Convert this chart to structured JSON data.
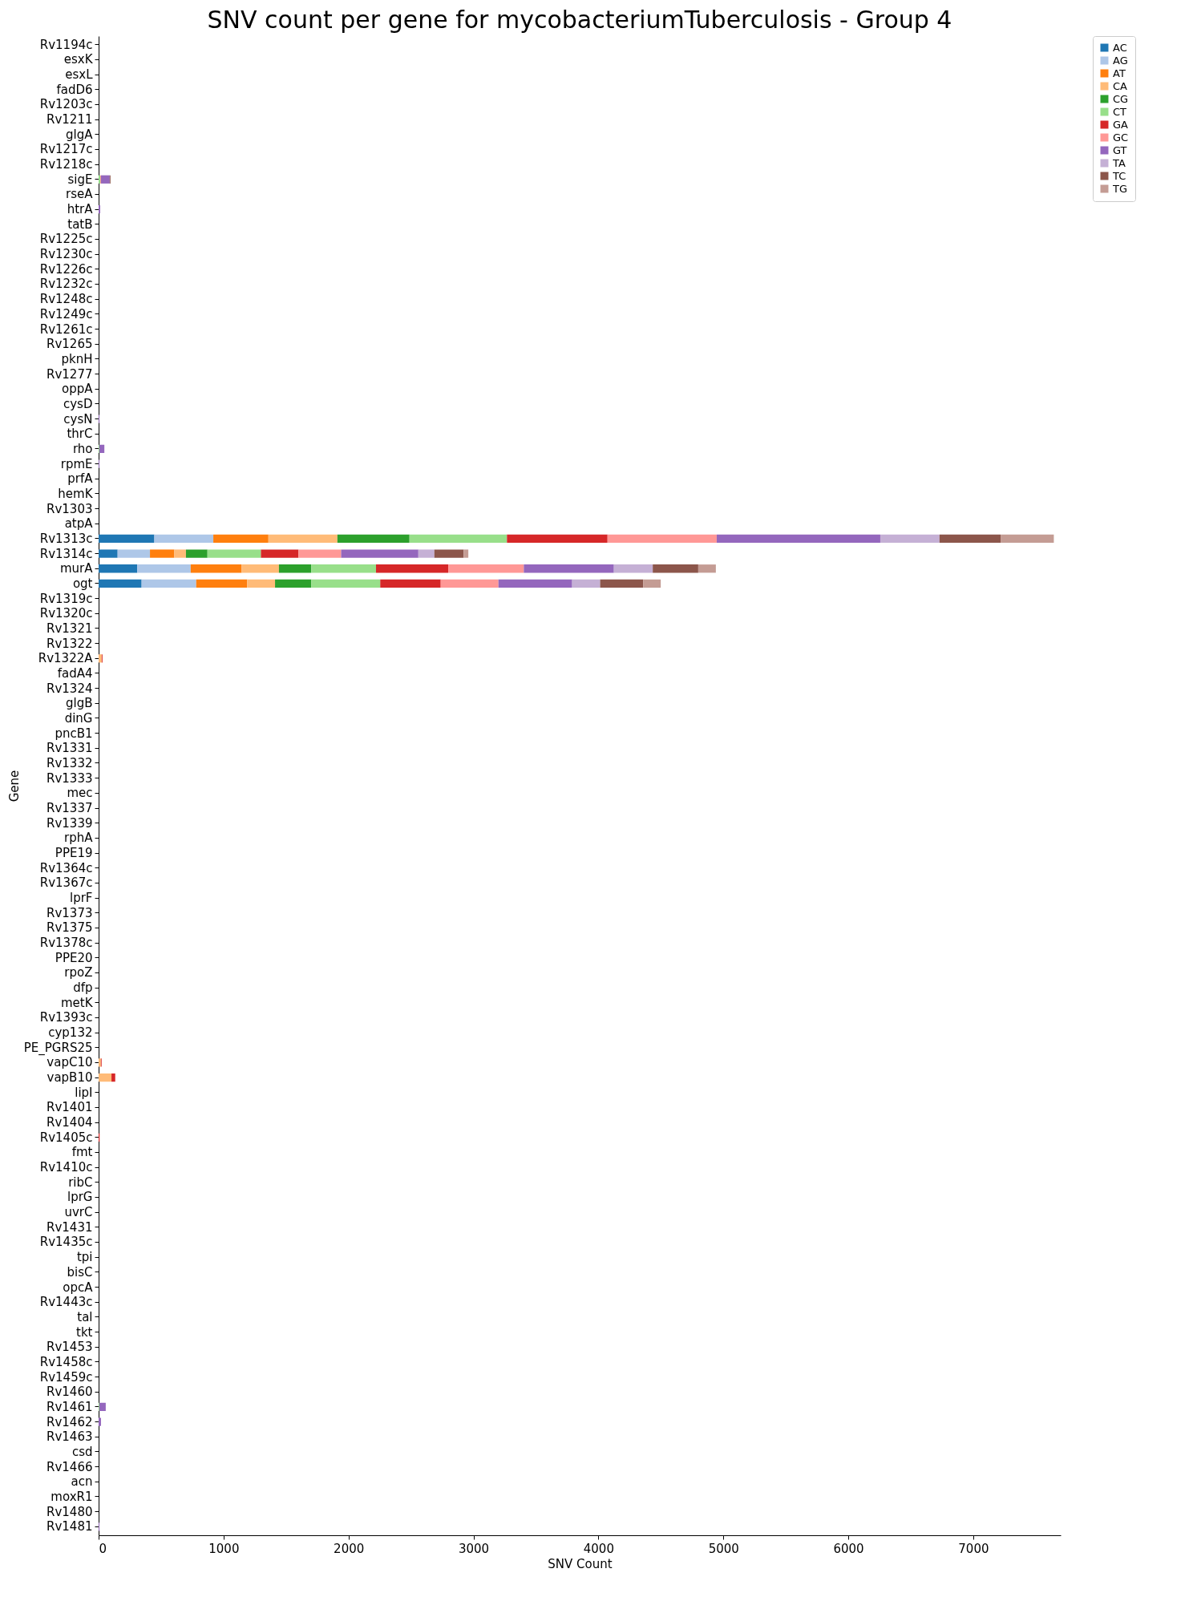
{
  "chart_data": {
    "type": "bar",
    "orientation": "horizontal",
    "stacked": true,
    "title": "SNV count per gene for mycobacteriumTuberculosis - Group 4",
    "xlabel": "SNV Count",
    "ylabel": "Gene",
    "grid": false,
    "legend": "top right",
    "xlim": [
      0,
      7700
    ],
    "xticks": [
      0,
      1000,
      2000,
      3000,
      4000,
      5000,
      6000,
      7000
    ],
    "categories": [
      "Rv1194c",
      "esxK",
      "esxL",
      "fadD6",
      "Rv1203c",
      "Rv1211",
      "glgA",
      "Rv1217c",
      "Rv1218c",
      "sigE",
      "rseA",
      "htrA",
      "tatB",
      "Rv1225c",
      "Rv1230c",
      "Rv1226c",
      "Rv1232c",
      "Rv1248c",
      "Rv1249c",
      "Rv1261c",
      "Rv1265",
      "pknH",
      "Rv1277",
      "oppA",
      "cysD",
      "cysN",
      "thrC",
      "rho",
      "rpmE",
      "prfA",
      "hemK",
      "Rv1303",
      "atpA",
      "Rv1313c",
      "Rv1314c",
      "murA",
      "ogt",
      "Rv1319c",
      "Rv1320c",
      "Rv1321",
      "Rv1322",
      "Rv1322A",
      "fadA4",
      "Rv1324",
      "glgB",
      "dinG",
      "pncB1",
      "Rv1331",
      "Rv1332",
      "Rv1333",
      "mec",
      "Rv1337",
      "Rv1339",
      "rphA",
      "PPE19",
      "Rv1364c",
      "Rv1367c",
      "lprF",
      "Rv1373",
      "Rv1375",
      "Rv1378c",
      "PPE20",
      "rpoZ",
      "dfp",
      "metK",
      "Rv1393c",
      "cyp132",
      "PE_PGRS25",
      "vapC10",
      "vapB10",
      "lipI",
      "Rv1401",
      "Rv1404",
      "Rv1405c",
      "fmt",
      "Rv1410c",
      "ribC",
      "lprG",
      "uvrC",
      "Rv1431",
      "Rv1435c",
      "tpi",
      "bisC",
      "opcA",
      "Rv1443c",
      "tal",
      "tkt",
      "Rv1453",
      "Rv1458c",
      "Rv1459c",
      "Rv1460",
      "Rv1461",
      "Rv1462",
      "Rv1463",
      "csd",
      "Rv1466",
      "acn",
      "moxR1",
      "Rv1480",
      "Rv1481"
    ],
    "series": [
      {
        "name": "AC",
        "color": "#1f77b4",
        "values": [
          0,
          0,
          0,
          0,
          0,
          0,
          0,
          0,
          0,
          0,
          0,
          0,
          0,
          0,
          0,
          0,
          0,
          0,
          0,
          0,
          0,
          0,
          0,
          0,
          0,
          0,
          0,
          0,
          0,
          0,
          0,
          0,
          0,
          446,
          152,
          309,
          344,
          0,
          0,
          0,
          0,
          0,
          0,
          0,
          0,
          0,
          0,
          0,
          0,
          0,
          0,
          0,
          0,
          0,
          0,
          0,
          0,
          0,
          0,
          0,
          0,
          0,
          0,
          0,
          0,
          0,
          0,
          0,
          0,
          0,
          0,
          0,
          0,
          0,
          0,
          0,
          0,
          0,
          0,
          0,
          0,
          0,
          0,
          0,
          0,
          0,
          0,
          0,
          0,
          0,
          0,
          0,
          0,
          0,
          0,
          0,
          0,
          0,
          0,
          0
        ]
      },
      {
        "name": "AG",
        "color": "#aec7e8",
        "values": [
          0,
          0,
          0,
          0,
          0,
          0,
          0,
          0,
          0,
          0,
          0,
          0,
          0,
          0,
          0,
          0,
          0,
          0,
          0,
          0,
          0,
          0,
          0,
          0,
          0,
          0,
          0,
          0,
          0,
          0,
          0,
          0,
          0,
          472,
          259,
          428,
          437,
          0,
          0,
          0,
          0,
          0,
          0,
          0,
          0,
          0,
          0,
          0,
          0,
          0,
          0,
          0,
          0,
          0,
          0,
          0,
          0,
          0,
          0,
          0,
          0,
          0,
          0,
          0,
          0,
          0,
          0,
          0,
          0,
          0,
          0,
          0,
          0,
          0,
          0,
          0,
          0,
          0,
          0,
          0,
          0,
          0,
          0,
          0,
          0,
          0,
          0,
          0,
          0,
          0,
          0,
          0,
          0,
          0,
          0,
          0,
          0,
          0,
          0,
          0
        ]
      },
      {
        "name": "AT",
        "color": "#ff7f0e",
        "values": [
          0,
          0,
          0,
          0,
          0,
          0,
          0,
          0,
          0,
          0,
          0,
          0,
          0,
          0,
          0,
          0,
          0,
          0,
          0,
          0,
          0,
          0,
          0,
          0,
          0,
          0,
          0,
          0,
          0,
          0,
          0,
          0,
          0,
          441,
          195,
          408,
          408,
          0,
          0,
          0,
          0,
          0,
          0,
          0,
          0,
          0,
          0,
          0,
          0,
          0,
          0,
          0,
          0,
          0,
          0,
          0,
          0,
          0,
          0,
          0,
          0,
          0,
          0,
          0,
          0,
          0,
          0,
          0,
          0,
          0,
          0,
          0,
          0,
          0,
          0,
          0,
          0,
          0,
          0,
          0,
          0,
          0,
          0,
          0,
          0,
          0,
          0,
          0,
          0,
          0,
          0,
          0,
          0,
          0,
          0,
          0,
          0,
          0,
          0,
          0
        ]
      },
      {
        "name": "CA",
        "color": "#ffbb78",
        "values": [
          0,
          0,
          0,
          0,
          0,
          0,
          0,
          0,
          0,
          0,
          0,
          0,
          0,
          0,
          0,
          0,
          0,
          0,
          0,
          0,
          0,
          0,
          0,
          0,
          0,
          0,
          0,
          0,
          0,
          0,
          0,
          0,
          0,
          552,
          93,
          298,
          223,
          0,
          0,
          0,
          0,
          25,
          0,
          0,
          0,
          0,
          0,
          0,
          0,
          0,
          0,
          0,
          0,
          0,
          0,
          0,
          0,
          0,
          0,
          0,
          0,
          0,
          0,
          0,
          0,
          0,
          0,
          0,
          18,
          103,
          0,
          0,
          0,
          0,
          0,
          0,
          0,
          0,
          0,
          0,
          0,
          0,
          0,
          0,
          0,
          0,
          0,
          0,
          0,
          0,
          0,
          0,
          0,
          0,
          0,
          0,
          0,
          0,
          0,
          0
        ]
      },
      {
        "name": "CG",
        "color": "#2ca02c",
        "values": [
          0,
          0,
          0,
          0,
          0,
          0,
          0,
          0,
          0,
          0,
          0,
          0,
          0,
          0,
          0,
          0,
          0,
          0,
          0,
          0,
          0,
          0,
          0,
          0,
          0,
          0,
          0,
          0,
          0,
          0,
          0,
          0,
          0,
          577,
          172,
          259,
          290,
          0,
          0,
          0,
          0,
          0,
          0,
          0,
          0,
          0,
          0,
          0,
          0,
          0,
          0,
          0,
          0,
          0,
          0,
          0,
          0,
          0,
          0,
          0,
          0,
          0,
          0,
          0,
          0,
          0,
          0,
          0,
          0,
          0,
          0,
          0,
          0,
          0,
          0,
          0,
          0,
          0,
          0,
          0,
          0,
          0,
          0,
          0,
          0,
          0,
          0,
          0,
          0,
          0,
          0,
          0,
          0,
          0,
          0,
          0,
          0,
          0,
          0,
          0
        ]
      },
      {
        "name": "CT",
        "color": "#98df8a",
        "values": [
          0,
          0,
          0,
          0,
          0,
          0,
          0,
          0,
          0,
          13,
          0,
          0,
          0,
          0,
          0,
          0,
          0,
          0,
          0,
          0,
          0,
          0,
          0,
          0,
          0,
          0,
          0,
          6,
          0,
          0,
          0,
          0,
          0,
          780,
          428,
          518,
          552,
          0,
          0,
          0,
          0,
          0,
          0,
          0,
          0,
          0,
          0,
          0,
          0,
          0,
          0,
          0,
          0,
          0,
          0,
          0,
          0,
          0,
          0,
          0,
          0,
          0,
          0,
          0,
          0,
          0,
          0,
          0,
          0,
          null,
          0,
          0,
          0,
          0,
          0,
          0,
          0,
          0,
          0,
          0,
          0,
          0,
          0,
          0,
          0,
          0,
          0,
          0,
          0,
          0,
          0,
          6,
          0,
          0,
          0,
          0,
          0,
          0,
          0,
          0
        ]
      },
      {
        "name": "GA",
        "color": "#d62728",
        "values": [
          0,
          0,
          0,
          0,
          0,
          0,
          0,
          0,
          0,
          0,
          0,
          0,
          0,
          0,
          0,
          0,
          0,
          0,
          0,
          0,
          0,
          0,
          0,
          0,
          0,
          0,
          0,
          0,
          0,
          0,
          0,
          0,
          0,
          805,
          300,
          578,
          484,
          0,
          0,
          0,
          0,
          6,
          0,
          0,
          0,
          0,
          0,
          0,
          0,
          0,
          0,
          0,
          0,
          0,
          0,
          0,
          0,
          0,
          0,
          0,
          0,
          0,
          0,
          0,
          0,
          0,
          0,
          0,
          6,
          30,
          0,
          0,
          0,
          8,
          0,
          0,
          0,
          0,
          0,
          0,
          0,
          0,
          0,
          0,
          0,
          0,
          0,
          0,
          0,
          0,
          0,
          0,
          0,
          0,
          0,
          0,
          0,
          0,
          0,
          0
        ]
      },
      {
        "name": "GC",
        "color": "#ff9896",
        "values": [
          0,
          0,
          0,
          0,
          0,
          0,
          0,
          0,
          0,
          6,
          0,
          0,
          0,
          0,
          0,
          0,
          0,
          0,
          0,
          0,
          0,
          0,
          0,
          0,
          0,
          0,
          0,
          0,
          0,
          0,
          0,
          0,
          0,
          874,
          342,
          605,
          462,
          0,
          0,
          0,
          0,
          0,
          0,
          0,
          0,
          0,
          0,
          0,
          0,
          0,
          0,
          0,
          0,
          0,
          0,
          0,
          0,
          0,
          0,
          0,
          0,
          0,
          0,
          0,
          0,
          0,
          0,
          0,
          0,
          0,
          0,
          0,
          0,
          0,
          0,
          0,
          0,
          0,
          0,
          0,
          0,
          0,
          0,
          0,
          0,
          0,
          0,
          0,
          0,
          0,
          0,
          0,
          0,
          0,
          0,
          0,
          0,
          0,
          0,
          0
        ]
      },
      {
        "name": "GT",
        "color": "#9467bd",
        "values": [
          0,
          0,
          0,
          0,
          0,
          0,
          0,
          0,
          0,
          70,
          0,
          13,
          0,
          0,
          0,
          0,
          0,
          0,
          0,
          0,
          0,
          0,
          0,
          0,
          0,
          6,
          0,
          40,
          6,
          0,
          0,
          0,
          0,
          1309,
          618,
          721,
          590,
          0,
          0,
          0,
          0,
          0,
          0,
          0,
          0,
          0,
          0,
          0,
          0,
          0,
          0,
          0,
          0,
          0,
          0,
          0,
          0,
          0,
          0,
          0,
          0,
          0,
          0,
          0,
          0,
          0,
          0,
          0,
          0,
          0,
          0,
          0,
          0,
          0,
          0,
          0,
          0,
          0,
          0,
          0,
          0,
          0,
          0,
          0,
          0,
          0,
          0,
          0,
          0,
          0,
          0,
          51,
          19,
          0,
          0,
          0,
          0,
          0,
          0,
          6
        ]
      },
      {
        "name": "TA",
        "color": "#c5b0d5",
        "values": [
          0,
          0,
          0,
          0,
          0,
          0,
          0,
          0,
          0,
          0,
          0,
          0,
          0,
          0,
          0,
          0,
          0,
          0,
          0,
          0,
          0,
          0,
          0,
          0,
          0,
          0,
          0,
          0,
          0,
          0,
          0,
          0,
          0,
          474,
          128,
          311,
          224,
          0,
          0,
          0,
          0,
          0,
          0,
          0,
          0,
          0,
          0,
          0,
          0,
          0,
          0,
          0,
          0,
          0,
          0,
          0,
          0,
          0,
          0,
          0,
          0,
          0,
          0,
          0,
          0,
          0,
          0,
          0,
          0,
          0,
          0,
          0,
          0,
          0,
          0,
          0,
          0,
          0,
          0,
          0,
          0,
          0,
          0,
          0,
          0,
          0,
          0,
          0,
          0,
          0,
          0,
          0,
          0,
          0,
          0,
          0,
          0,
          0,
          0,
          0
        ]
      },
      {
        "name": "TC",
        "color": "#8c564b",
        "values": [
          0,
          0,
          0,
          0,
          0,
          0,
          0,
          0,
          0,
          6,
          0,
          0,
          0,
          0,
          0,
          0,
          0,
          0,
          0,
          0,
          0,
          0,
          0,
          0,
          0,
          0,
          0,
          0,
          0,
          0,
          0,
          0,
          0,
          489,
          234,
          364,
          344,
          0,
          0,
          0,
          0,
          0,
          0,
          0,
          0,
          0,
          0,
          0,
          0,
          0,
          0,
          0,
          0,
          0,
          0,
          0,
          0,
          0,
          0,
          0,
          0,
          0,
          0,
          0,
          0,
          0,
          0,
          0,
          0,
          0,
          0,
          0,
          0,
          0,
          0,
          0,
          0,
          0,
          0,
          0,
          0,
          0,
          0,
          0,
          0,
          0,
          0,
          0,
          0,
          0,
          0,
          0,
          0,
          0,
          0,
          0,
          0,
          0,
          0,
          0
        ]
      },
      {
        "name": "TG",
        "color": "#c49c94",
        "values": [
          0,
          0,
          0,
          0,
          0,
          0,
          0,
          0,
          0,
          0,
          0,
          0,
          0,
          0,
          0,
          0,
          0,
          0,
          0,
          0,
          0,
          0,
          0,
          0,
          0,
          0,
          0,
          0,
          0,
          0,
          0,
          0,
          0,
          426,
          38,
          141,
          141,
          0,
          0,
          0,
          0,
          0,
          0,
          0,
          0,
          0,
          0,
          0,
          0,
          0,
          0,
          0,
          0,
          0,
          0,
          0,
          0,
          0,
          0,
          0,
          0,
          0,
          0,
          0,
          0,
          0,
          0,
          0,
          0,
          0,
          0,
          0,
          0,
          0,
          0,
          0,
          0,
          0,
          0,
          0,
          0,
          0,
          0,
          0,
          0,
          0,
          0,
          0,
          0,
          0,
          0,
          0,
          0,
          0,
          0,
          0,
          0,
          0,
          0,
          0
        ]
      }
    ]
  }
}
